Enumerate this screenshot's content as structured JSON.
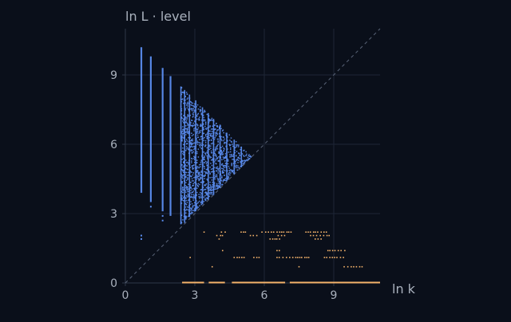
{
  "chart_data": {
    "type": "scatter",
    "ylabel": "ln L · level",
    "xlabel": "ln k",
    "xlim": [
      0,
      11.0
    ],
    "ylim": [
      0,
      11.0
    ],
    "xticks": [
      0,
      3,
      6,
      9
    ],
    "yticks": [
      0,
      3,
      6,
      9
    ],
    "grid": true,
    "reference_line": {
      "style": "dashed",
      "equation": "y = x"
    },
    "colors": {
      "background": "#0a0f1a",
      "blue_series": "#5b8def",
      "orange_series": "#f5b36b",
      "grid": "#1e2636",
      "axis": "#2e3748",
      "text": "#a9b1bd",
      "reference": "#5a6478"
    },
    "series": [
      {
        "color_key": "blue_series",
        "description_points": "divisor-pair points forming vertical strands under a triangular envelope",
        "strands": [
          {
            "x": 0.69,
            "y_top": 10.2,
            "y_bottom": 3.9
          },
          {
            "x": 1.1,
            "y_top": 9.8,
            "y_bottom": 3.5
          },
          {
            "x": 1.61,
            "y_top": 9.3,
            "y_bottom": 3.1
          },
          {
            "x": 1.95,
            "y_top": 8.95,
            "y_bottom": 2.9
          },
          {
            "x": 2.4,
            "y_top": 8.5,
            "y_bottom": 2.55
          },
          {
            "x": 2.56,
            "y_top": 8.35,
            "y_bottom": 2.6
          },
          {
            "x": 2.77,
            "y_top": 8.15,
            "y_bottom": 2.85
          },
          {
            "x": 3.04,
            "y_top": 7.9,
            "y_bottom": 3.1
          },
          {
            "x": 3.33,
            "y_top": 7.6,
            "y_bottom": 3.4
          },
          {
            "x": 3.58,
            "y_top": 7.35,
            "y_bottom": 3.6
          },
          {
            "x": 3.81,
            "y_top": 7.1,
            "y_bottom": 3.8
          },
          {
            "x": 4.09,
            "y_top": 6.85,
            "y_bottom": 4.1
          },
          {
            "x": 4.38,
            "y_top": 6.5,
            "y_bottom": 4.4
          },
          {
            "x": 4.7,
            "y_top": 6.2,
            "y_bottom": 4.7
          },
          {
            "x": 5.01,
            "y_top": 5.9,
            "y_bottom": 5.0
          }
        ],
        "envelope": [
          [
            2.4,
            8.5
          ],
          [
            5.45,
            5.45
          ],
          [
            2.4,
            2.55
          ]
        ],
        "apex": {
          "x": 5.45,
          "y": 5.45
        }
      },
      {
        "color_key": "orange_series",
        "rows": [
          {
            "y": 0.0,
            "segments": [
              [
                2.45,
                3.4
              ],
              [
                3.6,
                4.3
              ],
              [
                4.6,
                6.9
              ],
              [
                7.1,
                11.0
              ]
            ]
          },
          {
            "y": 2.2,
            "segments": [
              [
                3.4,
                3.5
              ],
              [
                4.15,
                4.35
              ],
              [
                5.0,
                5.3
              ],
              [
                5.9,
                7.2
              ],
              [
                7.8,
                8.7
              ]
            ]
          },
          {
            "y": 2.05,
            "segments": [
              [
                3.95,
                4.35
              ],
              [
                5.4,
                5.8
              ],
              [
                6.6,
                7.0
              ],
              [
                8.0,
                8.9
              ]
            ]
          },
          {
            "y": 1.9,
            "segments": [
              [
                4.05,
                4.15
              ],
              [
                6.25,
                6.7
              ],
              [
                8.2,
                8.55
              ]
            ]
          },
          {
            "y": 1.4,
            "segments": [
              [
                4.2,
                4.3
              ],
              [
                6.55,
                6.7
              ],
              [
                8.75,
                9.5
              ]
            ]
          },
          {
            "y": 1.1,
            "segments": [
              [
                2.8,
                2.9
              ],
              [
                4.7,
                5.2
              ],
              [
                5.55,
                5.9
              ],
              [
                6.55,
                7.95
              ],
              [
                8.6,
                9.55
              ]
            ]
          },
          {
            "y": 0.7,
            "segments": [
              [
                3.75,
                3.85
              ],
              [
                7.5,
                7.6
              ],
              [
                9.45,
                10.25
              ]
            ]
          }
        ]
      }
    ]
  }
}
